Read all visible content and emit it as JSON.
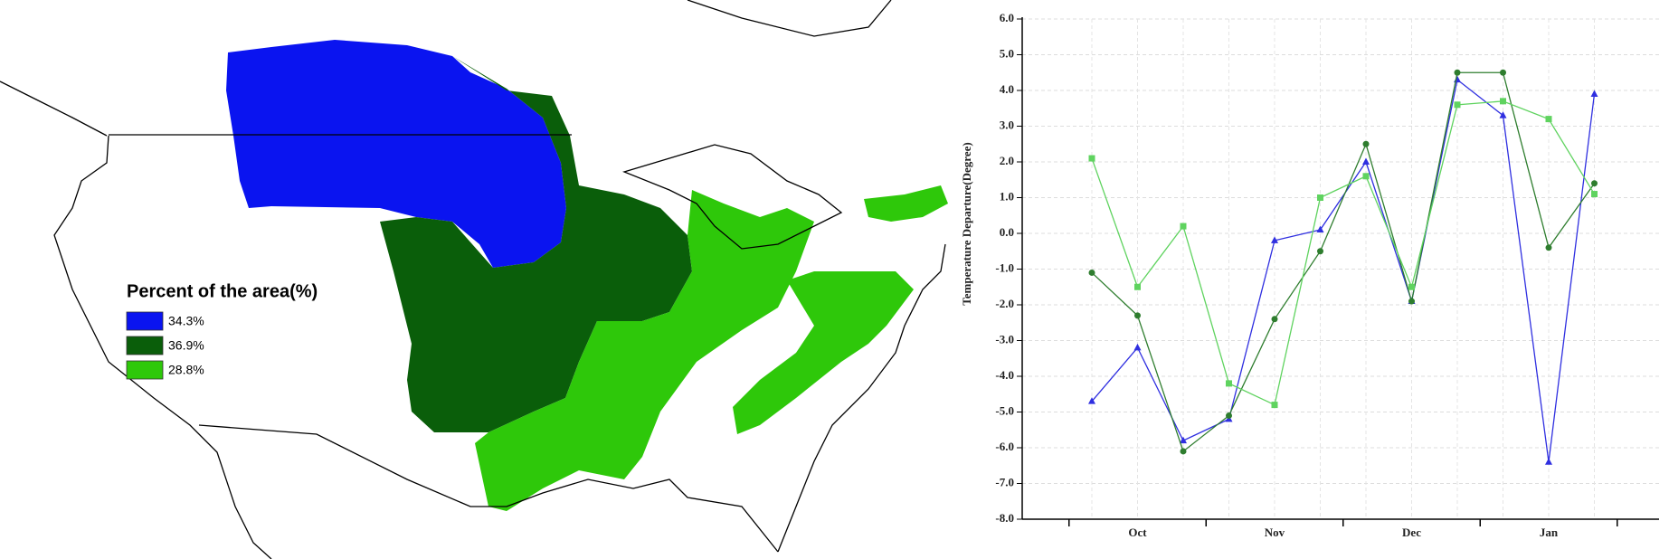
{
  "legend_panel": {
    "title": "Percent of the area(%)",
    "items": [
      {
        "label": "34.3%",
        "color": "#0a14f0"
      },
      {
        "label": "36.9%",
        "color": "#0a5e0a"
      },
      {
        "label": "28.8%",
        "color": "#2ec80a"
      }
    ]
  },
  "chart_data": {
    "type": "line",
    "ylabel": "Temperature Departure(Degree)",
    "categories": [
      null,
      "Oct",
      null,
      null,
      "Nov",
      null,
      null,
      "Dec",
      null,
      null,
      "Jan",
      null
    ],
    "ylim": [
      -8,
      6
    ],
    "yticks": [
      {
        "value": -8,
        "label": "-8.0"
      },
      {
        "value": -7,
        "label": "-7.0"
      },
      {
        "value": -6,
        "label": "-6.0"
      },
      {
        "value": -5,
        "label": "-5.0"
      },
      {
        "value": -4,
        "label": "-4.0"
      },
      {
        "value": -3,
        "label": "-3.0"
      },
      {
        "value": -2,
        "label": "-2.0"
      },
      {
        "value": -1,
        "label": "-1.0"
      },
      {
        "value": 0,
        "label": "0.0"
      },
      {
        "value": 1,
        "label": "1.0"
      },
      {
        "value": 2,
        "label": "2.0"
      },
      {
        "value": 3,
        "label": "3.0"
      },
      {
        "value": 4,
        "label": "4.0"
      },
      {
        "value": 5,
        "label": "5.0"
      },
      {
        "value": 6,
        "label": "6.0"
      }
    ],
    "grid": true,
    "series": [
      {
        "color": "#2f2fe0",
        "marker": "triangle",
        "values": [
          -4.7,
          -3.2,
          -5.8,
          -5.2,
          -0.2,
          0.1,
          2.0,
          -1.9,
          4.3,
          3.3,
          -6.4,
          3.9
        ]
      },
      {
        "color": "#2e7d2e",
        "marker": "circle",
        "values": [
          -1.1,
          -2.3,
          -6.1,
          -5.1,
          -2.4,
          -0.5,
          2.5,
          -1.9,
          4.5,
          4.5,
          -0.4,
          1.4
        ]
      },
      {
        "color": "#5fd35f",
        "marker": "square",
        "values": [
          2.1,
          -1.5,
          0.2,
          -4.2,
          -4.8,
          1.0,
          1.6,
          -1.5,
          3.6,
          3.7,
          3.2,
          1.1
        ]
      }
    ]
  }
}
